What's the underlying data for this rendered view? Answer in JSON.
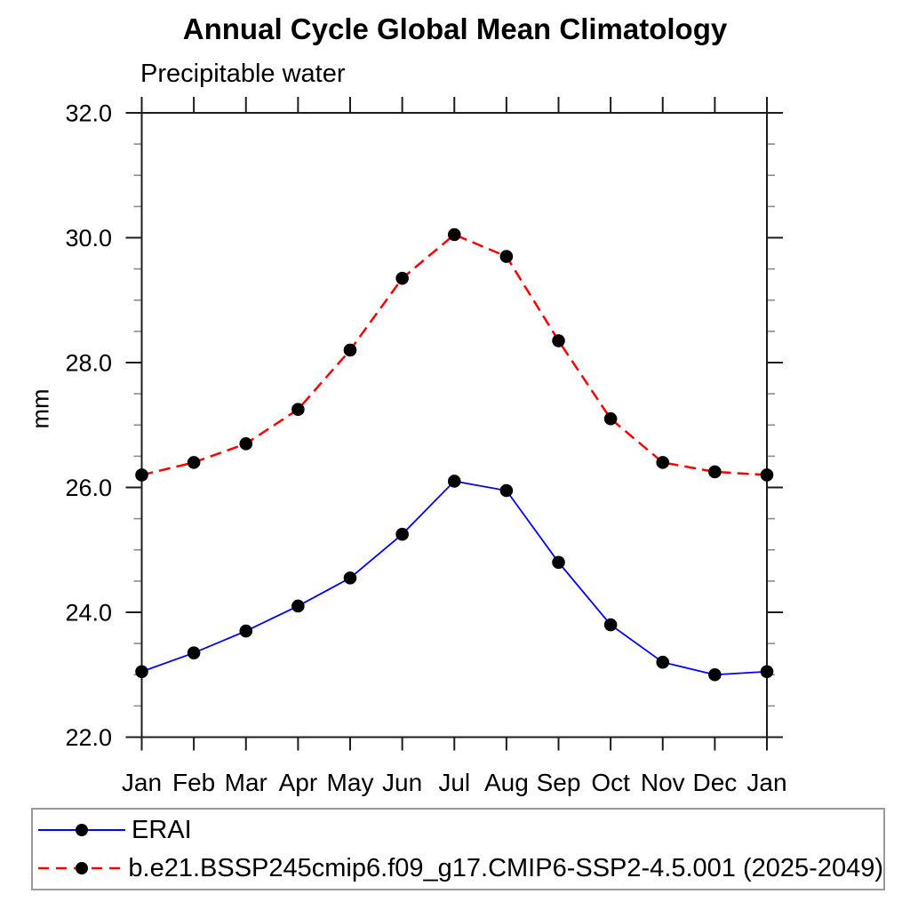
{
  "chart_data": {
    "type": "line",
    "title": "Annual Cycle Global Mean Climatology",
    "subtitle": "Precipitable water",
    "ylabel": "mm",
    "xlabel": "",
    "x_categories": [
      "Jan",
      "Feb",
      "Mar",
      "Apr",
      "May",
      "Jun",
      "Jul",
      "Aug",
      "Sep",
      "Oct",
      "Nov",
      "Dec",
      "Jan"
    ],
    "ylim": [
      22.0,
      32.0
    ],
    "y_major_tick_labels": [
      "22.0",
      "24.0",
      "26.0",
      "28.0",
      "30.0",
      "32.0"
    ],
    "y_major_tick_values": [
      22.0,
      24.0,
      26.0,
      28.0,
      30.0,
      32.0
    ],
    "y_minor_step": 0.5,
    "grid": false,
    "legend_position": "bottom",
    "series": [
      {
        "name": "ERAI",
        "color": "#0000ff",
        "line_style": "solid",
        "marker": "filled-circle",
        "marker_color": "#000000",
        "values": [
          23.05,
          23.35,
          23.7,
          24.1,
          24.55,
          25.25,
          26.1,
          25.95,
          24.8,
          23.8,
          23.2,
          23.0,
          23.05
        ]
      },
      {
        "name": "b.e21.BSSP245cmip6.f09_g17.CMIP6-SSP2-4.5.001 (2025-2049)",
        "color": "#ff0000",
        "line_style": "dashed",
        "marker": "filled-circle",
        "marker_color": "#000000",
        "values": [
          26.2,
          26.4,
          26.7,
          27.25,
          28.2,
          29.35,
          30.05,
          29.7,
          28.35,
          27.1,
          26.4,
          26.25,
          26.2
        ]
      }
    ]
  }
}
